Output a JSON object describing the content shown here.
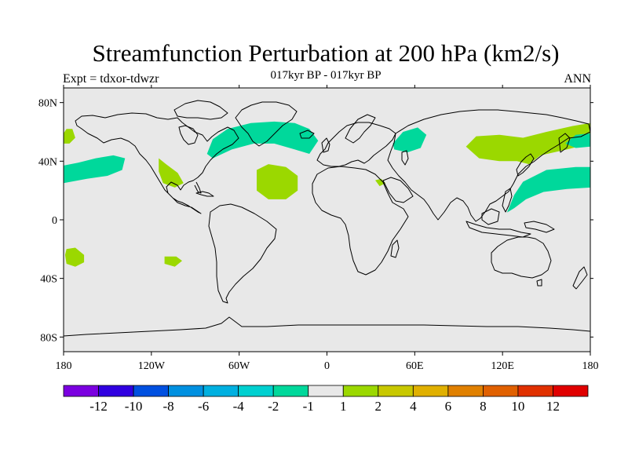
{
  "header": {
    "title": "Streamfunction Perturbation at 200 hPa (km2/s)",
    "subtitle": "017kyr BP - 017kyr BP",
    "left_note": "Expt = tdxor-tdwzr",
    "right_note": "ANN"
  },
  "map": {
    "lon_range": [
      -180,
      180
    ],
    "lat_range": [
      -90,
      90
    ],
    "background": "#e8e8e8",
    "coastline_color": "#000000",
    "x_ticks": [
      {
        "value": -180,
        "label": "180"
      },
      {
        "value": -120,
        "label": "120W"
      },
      {
        "value": -60,
        "label": "60W"
      },
      {
        "value": 0,
        "label": "0"
      },
      {
        "value": 60,
        "label": "60E"
      },
      {
        "value": 120,
        "label": "120E"
      },
      {
        "value": 180,
        "label": "180"
      }
    ],
    "y_ticks": [
      {
        "value": 80,
        "label": "80N"
      },
      {
        "value": 40,
        "label": "40N"
      },
      {
        "value": 0,
        "label": "0"
      },
      {
        "value": -40,
        "label": "40S"
      },
      {
        "value": -80,
        "label": "80S"
      }
    ],
    "anomaly_regions": [
      {
        "sign": "positive",
        "color": "#9bd800",
        "points": [
          [
            -180,
            59
          ],
          [
            -178,
            62
          ],
          [
            -174,
            62
          ],
          [
            -172,
            56
          ],
          [
            -176,
            52
          ],
          [
            -180,
            52
          ]
        ]
      },
      {
        "sign": "negative",
        "color": "#00d89b",
        "points": [
          [
            -180,
            37
          ],
          [
            -170,
            39
          ],
          [
            -158,
            42
          ],
          [
            -146,
            44
          ],
          [
            -138,
            42
          ],
          [
            -140,
            34
          ],
          [
            -150,
            30
          ],
          [
            -164,
            28
          ],
          [
            -180,
            25
          ]
        ]
      },
      {
        "sign": "positive",
        "color": "#9bd800",
        "points": [
          [
            -115,
            42
          ],
          [
            -110,
            38
          ],
          [
            -102,
            32
          ],
          [
            -98,
            25
          ],
          [
            -104,
            22
          ],
          [
            -112,
            25
          ],
          [
            -115,
            33
          ]
        ]
      },
      {
        "sign": "negative",
        "color": "#00d89b",
        "points": [
          [
            -82,
            45
          ],
          [
            -78,
            55
          ],
          [
            -68,
            62
          ],
          [
            -52,
            66
          ],
          [
            -36,
            67
          ],
          [
            -22,
            66
          ],
          [
            -12,
            62
          ],
          [
            -6,
            54
          ],
          [
            -12,
            45
          ],
          [
            -22,
            48
          ],
          [
            -36,
            52
          ],
          [
            -50,
            52
          ],
          [
            -65,
            48
          ],
          [
            -78,
            42
          ]
        ]
      },
      {
        "sign": "positive",
        "color": "#9bd800",
        "points": [
          [
            -48,
            34
          ],
          [
            -40,
            38
          ],
          [
            -28,
            36
          ],
          [
            -20,
            30
          ],
          [
            -20,
            20
          ],
          [
            -28,
            14
          ],
          [
            -40,
            14
          ],
          [
            -48,
            20
          ]
        ]
      },
      {
        "sign": "positive",
        "color": "#9bd800",
        "points": [
          [
            33,
            27
          ],
          [
            37,
            28
          ],
          [
            40,
            25
          ],
          [
            36,
            23
          ]
        ]
      },
      {
        "sign": "negative",
        "color": "#00d89b",
        "points": [
          [
            45,
            52
          ],
          [
            52,
            60
          ],
          [
            62,
            63
          ],
          [
            68,
            58
          ],
          [
            64,
            49
          ],
          [
            55,
            46
          ],
          [
            46,
            48
          ]
        ]
      },
      {
        "sign": "positive",
        "color": "#9bd800",
        "points": [
          [
            95,
            50
          ],
          [
            102,
            57
          ],
          [
            118,
            58
          ],
          [
            134,
            56
          ],
          [
            150,
            60
          ],
          [
            168,
            64
          ],
          [
            180,
            66
          ],
          [
            180,
            52
          ],
          [
            164,
            48
          ],
          [
            146,
            44
          ],
          [
            138,
            38
          ],
          [
            130,
            40
          ],
          [
            118,
            40
          ],
          [
            104,
            42
          ]
        ]
      },
      {
        "sign": "negative",
        "color": "#00d89b",
        "points": [
          [
            123,
            5
          ],
          [
            128,
            17
          ],
          [
            134,
            26
          ],
          [
            150,
            34
          ],
          [
            170,
            36
          ],
          [
            180,
            36
          ],
          [
            180,
            22
          ],
          [
            164,
            21
          ],
          [
            148,
            19
          ],
          [
            136,
            14
          ],
          [
            128,
            8
          ]
        ]
      },
      {
        "sign": "negative",
        "color": "#00d89b",
        "points": [
          [
            163,
            52
          ],
          [
            170,
            58
          ],
          [
            180,
            59
          ],
          [
            180,
            50
          ],
          [
            170,
            49
          ]
        ]
      },
      {
        "sign": "positive",
        "color": "#9bd800",
        "points": [
          [
            -178,
            -20
          ],
          [
            -172,
            -19
          ],
          [
            -166,
            -24
          ],
          [
            -166,
            -29
          ],
          [
            -172,
            -32
          ],
          [
            -178,
            -30
          ],
          [
            -179,
            -24
          ]
        ]
      },
      {
        "sign": "positive",
        "color": "#9bd800",
        "points": [
          [
            -111,
            -25
          ],
          [
            -103,
            -25
          ],
          [
            -99,
            -28
          ],
          [
            -104,
            -32
          ],
          [
            -111,
            -30
          ]
        ]
      }
    ]
  },
  "colorbar": {
    "colors": [
      "#7b00e0",
      "#3000e0",
      "#0050e0",
      "#0090e0",
      "#00b0e0",
      "#00d0d0",
      "#00d89b",
      "#e8e8e8",
      "#9bd800",
      "#c8c800",
      "#e0b000",
      "#e08000",
      "#e06000",
      "#e03000",
      "#e00000"
    ],
    "labels": [
      "-12",
      "-10",
      "-8",
      "-6",
      "-4",
      "-2",
      "-1",
      "1",
      "2",
      "4",
      "6",
      "8",
      "10",
      "12"
    ]
  }
}
